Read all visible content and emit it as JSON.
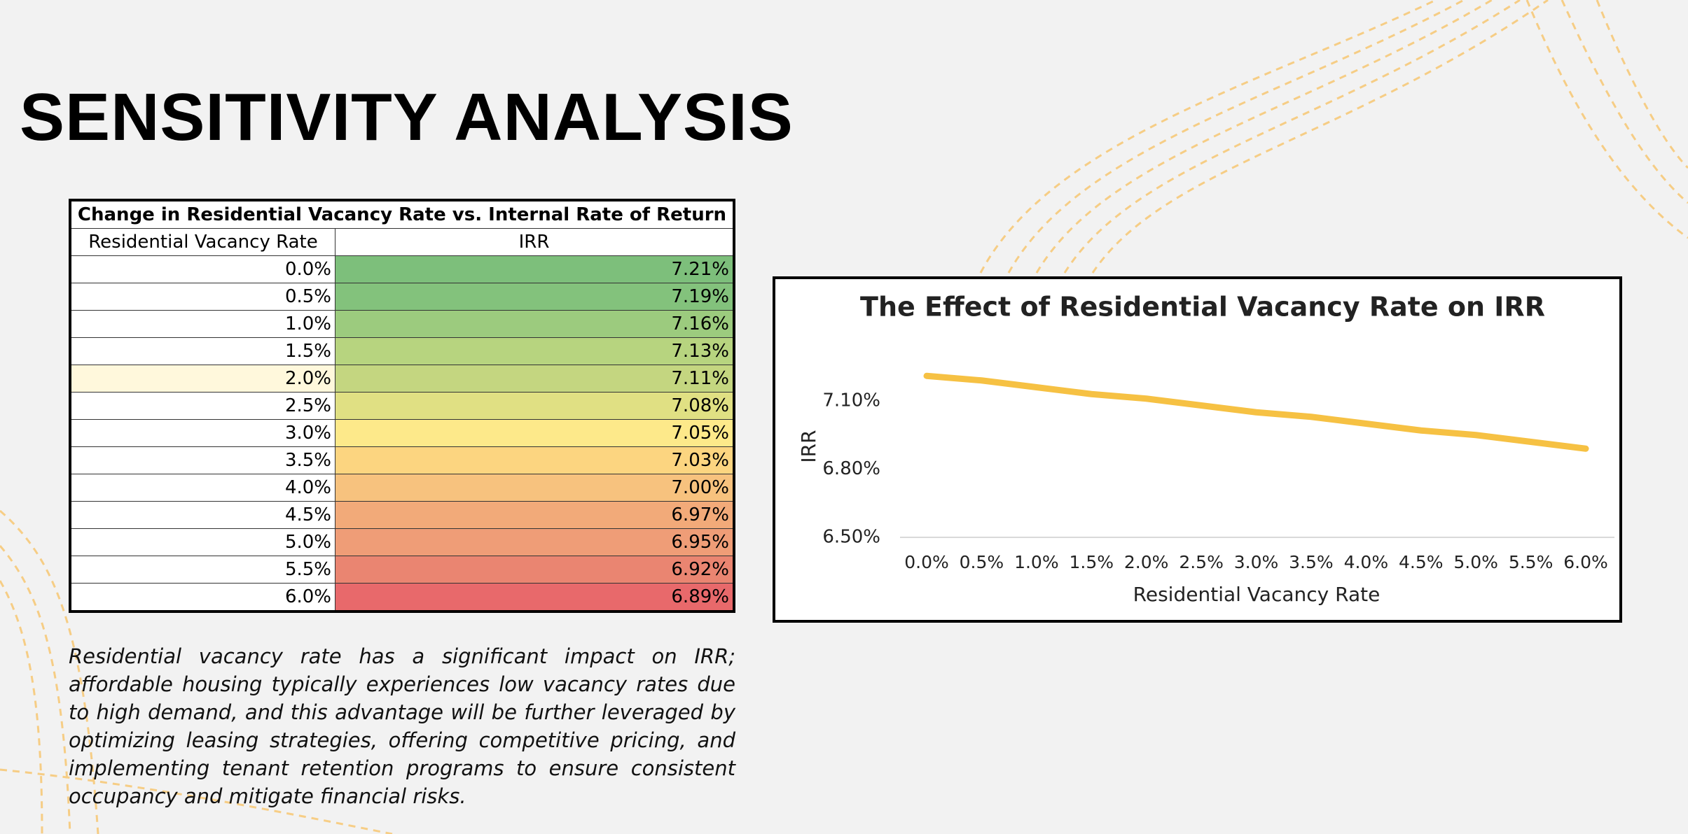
{
  "header": {
    "title": "SENSITIVITY ANALYSIS"
  },
  "table": {
    "title": "Change in Residential Vacancy Rate vs. Internal Rate of Return",
    "columns": [
      "Residential Vacancy Rate",
      "IRR"
    ],
    "rows": [
      [
        "0.0%",
        "7.21%"
      ],
      [
        "0.5%",
        "7.19%"
      ],
      [
        "1.0%",
        "7.16%"
      ],
      [
        "1.5%",
        "7.13%"
      ],
      [
        "2.0%",
        "7.11%"
      ],
      [
        "2.5%",
        "7.08%"
      ],
      [
        "3.0%",
        "7.05%"
      ],
      [
        "3.5%",
        "7.03%"
      ],
      [
        "4.0%",
        "7.00%"
      ],
      [
        "4.5%",
        "6.97%"
      ],
      [
        "5.0%",
        "6.95%"
      ],
      [
        "5.5%",
        "6.92%"
      ],
      [
        "6.0%",
        "6.89%"
      ]
    ],
    "irr_colors": [
      "#7dbf7b",
      "#83c27c",
      "#9ccb7e",
      "#b7d47f",
      "#c4d680",
      "#e0e083",
      "#fde98a",
      "#fcd580",
      "#f7c27e",
      "#f2aa79",
      "#ef9d77",
      "#ea8571",
      "#e8696b"
    ]
  },
  "chart_data": {
    "type": "line",
    "title": "The Effect of Residential Vacancy Rate on IRR",
    "x_label": "Residential Vacancy Rate",
    "y_label": "IRR",
    "categories": [
      "0.0%",
      "0.5%",
      "1.0%",
      "1.5%",
      "2.0%",
      "2.5%",
      "3.0%",
      "3.5%",
      "4.0%",
      "4.5%",
      "5.0%",
      "5.5%",
      "6.0%"
    ],
    "series": [
      {
        "name": "IRR",
        "color": "#f6c143",
        "values": [
          7.21,
          7.19,
          7.16,
          7.13,
          7.11,
          7.08,
          7.05,
          7.03,
          7.0,
          6.97,
          6.95,
          6.92,
          6.89
        ]
      }
    ],
    "ylim": [
      6.5,
      7.3
    ],
    "yticks": [
      {
        "value": 6.5,
        "label": "6.50%"
      },
      {
        "value": 6.8,
        "label": "6.80%"
      },
      {
        "value": 7.1,
        "label": "7.10%"
      }
    ],
    "grid": false
  },
  "paragraph": "Residential vacancy rate has a significant impact on IRR; affordable housing typically experiences low vacancy rates due to high demand, and this advantage will be further leveraged by optimizing leasing strategies, offering competitive pricing, and implementing tenant retention programs to ensure consistent occupancy and mitigate financial risks."
}
